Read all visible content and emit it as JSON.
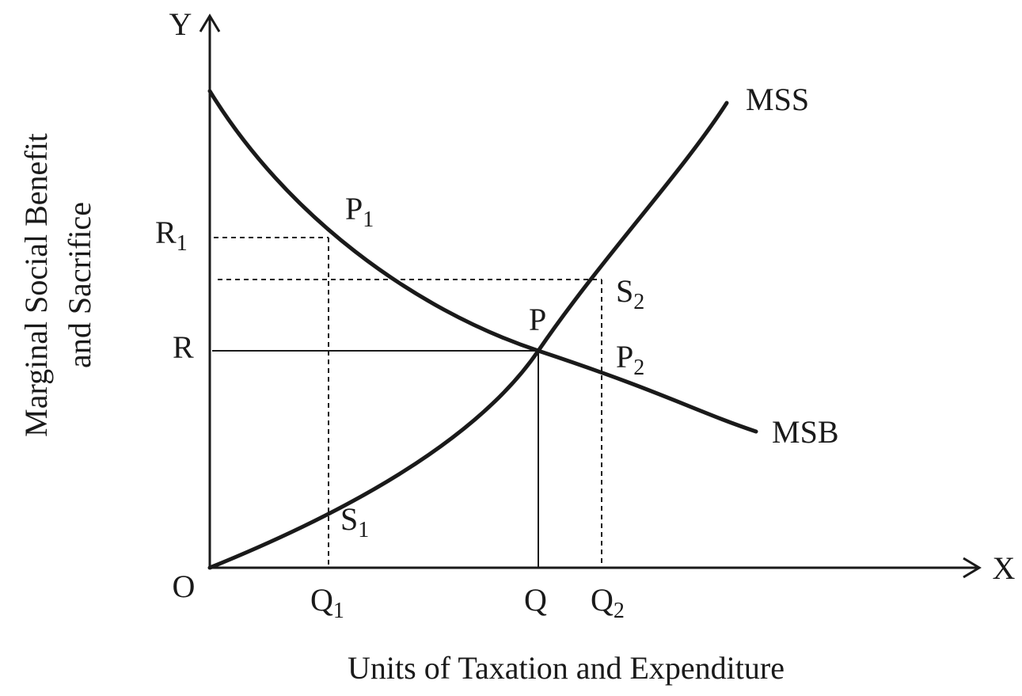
{
  "axes": {
    "y": "Y",
    "x": "X",
    "origin": "O",
    "y_title": [
      "Marginal Social Benefit",
      "and Sacrifice"
    ],
    "x_title": "Units of Taxation and Expenditure"
  },
  "curves": {
    "mss": "MSS",
    "msb": "MSB"
  },
  "labels": {
    "r1": {
      "base": "R",
      "sub": "1"
    },
    "r": "R",
    "q1": {
      "base": "Q",
      "sub": "1"
    },
    "q": "Q",
    "q2": {
      "base": "Q",
      "sub": "2"
    },
    "p1": {
      "base": "P",
      "sub": "1"
    },
    "p": "P",
    "p2": {
      "base": "P",
      "sub": "2"
    },
    "s1": {
      "base": "S",
      "sub": "1"
    },
    "s2": {
      "base": "S",
      "sub": "2"
    }
  }
}
